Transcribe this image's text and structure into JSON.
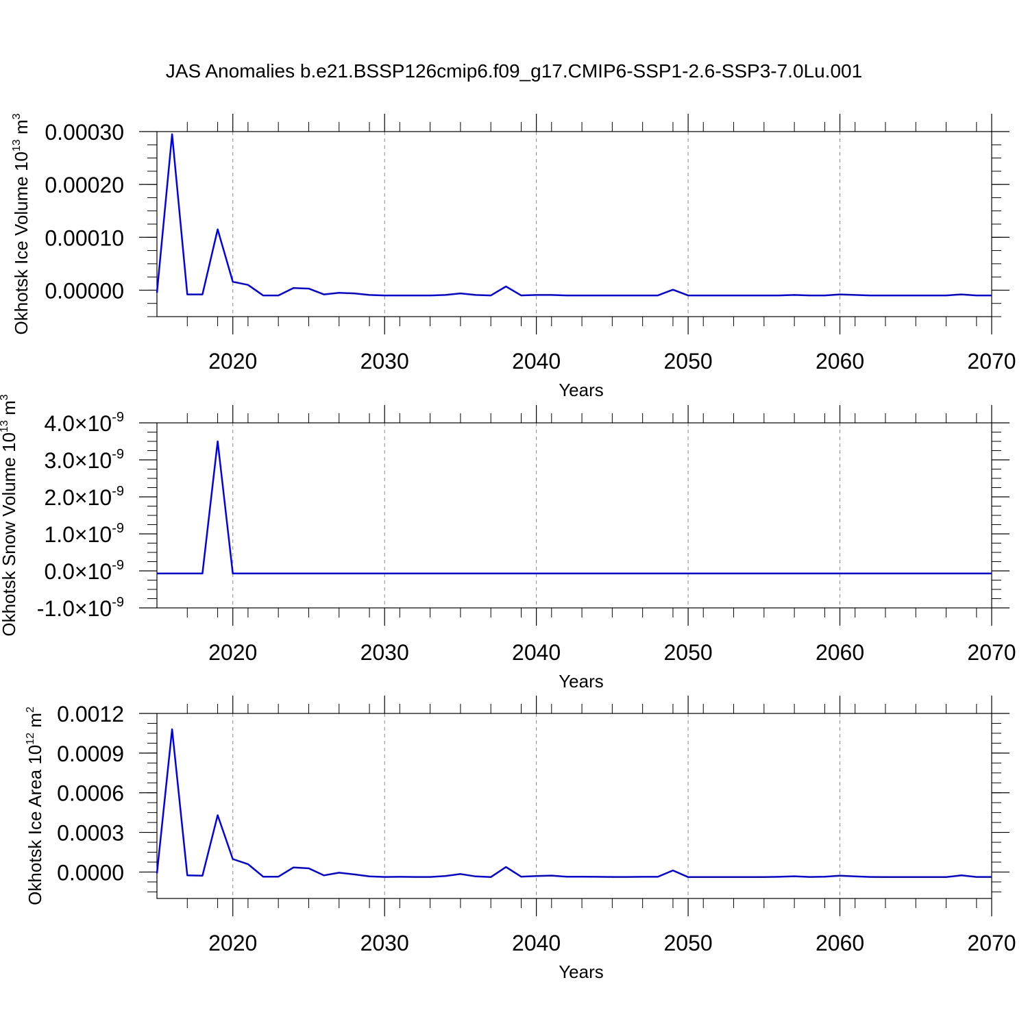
{
  "title": "JAS Anomalies b.e21.BSSP126cmip6.f09_g17.CMIP6-SSP1-2.6-SSP3-7.0Lu.001",
  "colors": {
    "line": "#0000ee",
    "axis": "#000000",
    "grid": "#888888",
    "background": "#ffffff"
  },
  "chart_data": [
    {
      "type": "line",
      "title": "",
      "xlabel": "Years",
      "ylabel": "Okhotsk Ice Volume 10^13 m^3",
      "ylabel_parts": {
        "text": "Okhotsk Ice Volume 10",
        "sup1": "13",
        "mid": " m",
        "sup2": "3"
      },
      "xlim": [
        2015,
        2070
      ],
      "ylim": [
        -5e-05,
        0.0003
      ],
      "x_ticks": [
        2020,
        2030,
        2040,
        2050,
        2060,
        2070
      ],
      "x_tick_labels": [
        "2020",
        "2030",
        "2040",
        "2050",
        "2060",
        "2070"
      ],
      "y_ticks": [
        0.0,
        0.0001,
        0.0002,
        0.0003
      ],
      "y_tick_labels": [
        "0.00000",
        "0.00010",
        "0.00020",
        "0.00030"
      ],
      "grid": "vertical dashed at major x ticks",
      "series": [
        {
          "x": [
            2015,
            2016,
            2017,
            2018,
            2019,
            2020,
            2021,
            2022,
            2023,
            2024,
            2025,
            2026,
            2027,
            2028,
            2029,
            2030,
            2031,
            2032,
            2033,
            2034,
            2035,
            2036,
            2037,
            2038,
            2039,
            2040,
            2041,
            2042,
            2043,
            2044,
            2045,
            2046,
            2047,
            2048,
            2049,
            2050,
            2051,
            2052,
            2053,
            2054,
            2055,
            2056,
            2057,
            2058,
            2059,
            2060,
            2061,
            2062,
            2063,
            2064,
            2065,
            2066,
            2067,
            2068,
            2069,
            2070
          ],
          "values": [
            -5e-06,
            0.000295,
            -8e-06,
            -8e-06,
            0.000115,
            1.6e-05,
            1e-05,
            -1e-05,
            -1e-05,
            4e-06,
            3e-06,
            -8e-06,
            -5e-06,
            -6e-06,
            -9e-06,
            -1e-05,
            -1e-05,
            -1e-05,
            -1e-05,
            -9e-06,
            -6e-06,
            -9e-06,
            -1e-05,
            7e-06,
            -1e-05,
            -9e-06,
            -9e-06,
            -1e-05,
            -1e-05,
            -1e-05,
            -1e-05,
            -1e-05,
            -1e-05,
            -1e-05,
            1e-06,
            -1e-05,
            -1e-05,
            -1e-05,
            -1e-05,
            -1e-05,
            -1e-05,
            -1e-05,
            -9e-06,
            -1e-05,
            -1e-05,
            -8e-06,
            -9e-06,
            -1e-05,
            -1e-05,
            -1e-05,
            -1e-05,
            -1e-05,
            -1e-05,
            -8e-06,
            -1e-05,
            -1e-05
          ]
        }
      ]
    },
    {
      "type": "line",
      "title": "",
      "xlabel": "Years",
      "ylabel": "Okhotsk Snow Volume 10^13 m^3",
      "ylabel_parts": {
        "text": "Okhotsk Snow Volume 10",
        "sup1": "13",
        "mid": " m",
        "sup2": "3"
      },
      "xlim": [
        2015,
        2070
      ],
      "ylim": [
        -1e-09,
        4e-09
      ],
      "x_ticks": [
        2020,
        2030,
        2040,
        2050,
        2060,
        2070
      ],
      "x_tick_labels": [
        "2020",
        "2030",
        "2040",
        "2050",
        "2060",
        "2070"
      ],
      "y_ticks": [
        -1e-09,
        0.0,
        1e-09,
        2e-09,
        3e-09,
        4e-09
      ],
      "y_tick_labels": [
        {
          "mant": "-1.0",
          "exp": "-9"
        },
        {
          "mant": "0.0",
          "exp": "-9"
        },
        {
          "mant": "1.0",
          "exp": "-9"
        },
        {
          "mant": "2.0",
          "exp": "-9"
        },
        {
          "mant": "3.0",
          "exp": "-9"
        },
        {
          "mant": "4.0",
          "exp": "-9"
        }
      ],
      "y_tick_times": "×10",
      "grid": "vertical dashed at major x ticks",
      "series": [
        {
          "x": [
            2015,
            2016,
            2017,
            2018,
            2019,
            2020,
            2021,
            2022,
            2023,
            2024,
            2025,
            2026,
            2027,
            2028,
            2029,
            2030,
            2031,
            2032,
            2033,
            2034,
            2035,
            2036,
            2037,
            2038,
            2039,
            2040,
            2041,
            2042,
            2043,
            2044,
            2045,
            2046,
            2047,
            2048,
            2049,
            2050,
            2051,
            2052,
            2053,
            2054,
            2055,
            2056,
            2057,
            2058,
            2059,
            2060,
            2061,
            2062,
            2063,
            2064,
            2065,
            2066,
            2067,
            2068,
            2069,
            2070
          ],
          "values": [
            -7e-11,
            -7e-11,
            -7e-11,
            -7e-11,
            3.5e-09,
            -7e-11,
            -7e-11,
            -7e-11,
            -7e-11,
            -7e-11,
            -7e-11,
            -7e-11,
            -7e-11,
            -7e-11,
            -7e-11,
            -7e-11,
            -7e-11,
            -7e-11,
            -7e-11,
            -7e-11,
            -7e-11,
            -7e-11,
            -7e-11,
            -7e-11,
            -7e-11,
            -7e-11,
            -7e-11,
            -7e-11,
            -7e-11,
            -7e-11,
            -7e-11,
            -7e-11,
            -7e-11,
            -7e-11,
            -7e-11,
            -7e-11,
            -7e-11,
            -7e-11,
            -7e-11,
            -7e-11,
            -7e-11,
            -7e-11,
            -7e-11,
            -7e-11,
            -7e-11,
            -7e-11,
            -7e-11,
            -7e-11,
            -7e-11,
            -7e-11,
            -7e-11,
            -7e-11,
            -7e-11,
            -7e-11,
            -7e-11,
            -7e-11
          ]
        }
      ]
    },
    {
      "type": "line",
      "title": "",
      "xlabel": "Years",
      "ylabel": "Okhotsk Ice Area 10^12 m^2",
      "ylabel_parts": {
        "text": "Okhotsk Ice Area 10",
        "sup1": "12",
        "mid": " m",
        "sup2": "2"
      },
      "xlim": [
        2015,
        2070
      ],
      "ylim": [
        -0.0002,
        0.0012
      ],
      "x_ticks": [
        2020,
        2030,
        2040,
        2050,
        2060,
        2070
      ],
      "x_tick_labels": [
        "2020",
        "2030",
        "2040",
        "2050",
        "2060",
        "2070"
      ],
      "y_ticks": [
        0.0,
        0.0003,
        0.0006,
        0.0009,
        0.0012
      ],
      "y_tick_labels": [
        "0.0000",
        "0.0003",
        "0.0006",
        "0.0009",
        "0.0012"
      ],
      "grid": "vertical dashed at major x ticks",
      "series": [
        {
          "x": [
            2015,
            2016,
            2017,
            2018,
            2019,
            2020,
            2021,
            2022,
            2023,
            2024,
            2025,
            2026,
            2027,
            2028,
            2029,
            2030,
            2031,
            2032,
            2033,
            2034,
            2035,
            2036,
            2037,
            2038,
            2039,
            2040,
            2041,
            2042,
            2043,
            2044,
            2045,
            2046,
            2047,
            2048,
            2049,
            2050,
            2051,
            2052,
            2053,
            2054,
            2055,
            2056,
            2057,
            2058,
            2059,
            2060,
            2061,
            2062,
            2063,
            2064,
            2065,
            2066,
            2067,
            2068,
            2069,
            2070
          ],
          "values": [
            -1e-05,
            0.00108,
            -2.5e-05,
            -2.8e-05,
            0.00043,
            9.8e-05,
            6e-05,
            -3.5e-05,
            -3.5e-05,
            3.5e-05,
            2.8e-05,
            -2.5e-05,
            -5e-06,
            -1.8e-05,
            -3.3e-05,
            -3.7e-05,
            -3.6e-05,
            -3.7e-05,
            -3.7e-05,
            -3e-05,
            -1.5e-05,
            -3.3e-05,
            -3.8e-05,
            3.8e-05,
            -3.5e-05,
            -3e-05,
            -2.7e-05,
            -3.5e-05,
            -3.5e-05,
            -3.6e-05,
            -3.7e-05,
            -3.7e-05,
            -3.6e-05,
            -3.6e-05,
            1.2e-05,
            -3.8e-05,
            -3.8e-05,
            -3.8e-05,
            -3.8e-05,
            -3.8e-05,
            -3.8e-05,
            -3.6e-05,
            -3.2e-05,
            -3.7e-05,
            -3.5e-05,
            -2.8e-05,
            -3.3e-05,
            -3.7e-05,
            -3.8e-05,
            -3.8e-05,
            -3.8e-05,
            -3.8e-05,
            -3.8e-05,
            -2.5e-05,
            -3.7e-05,
            -3.7e-05
          ]
        }
      ]
    }
  ]
}
